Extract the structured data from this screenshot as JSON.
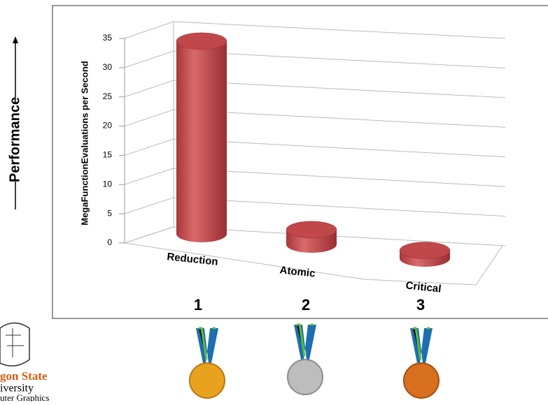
{
  "side_label": "Performance",
  "logo": {
    "line1": "gon State",
    "line2": "iversity",
    "line3": "uter Graphics"
  },
  "ranks": [
    "1",
    "2",
    "3"
  ],
  "chart_data": {
    "type": "bar3d",
    "y_label": "MegaFunctionEvaluations per Second",
    "categories": [
      "Reduction",
      "Atomic",
      "Critical"
    ],
    "values": [
      34,
      2.6,
      1.4
    ],
    "color": "#c0474a",
    "ylim": [
      0,
      35
    ],
    "yticks": [
      0,
      5,
      10,
      15,
      20,
      25,
      30,
      35
    ],
    "grid": true
  }
}
